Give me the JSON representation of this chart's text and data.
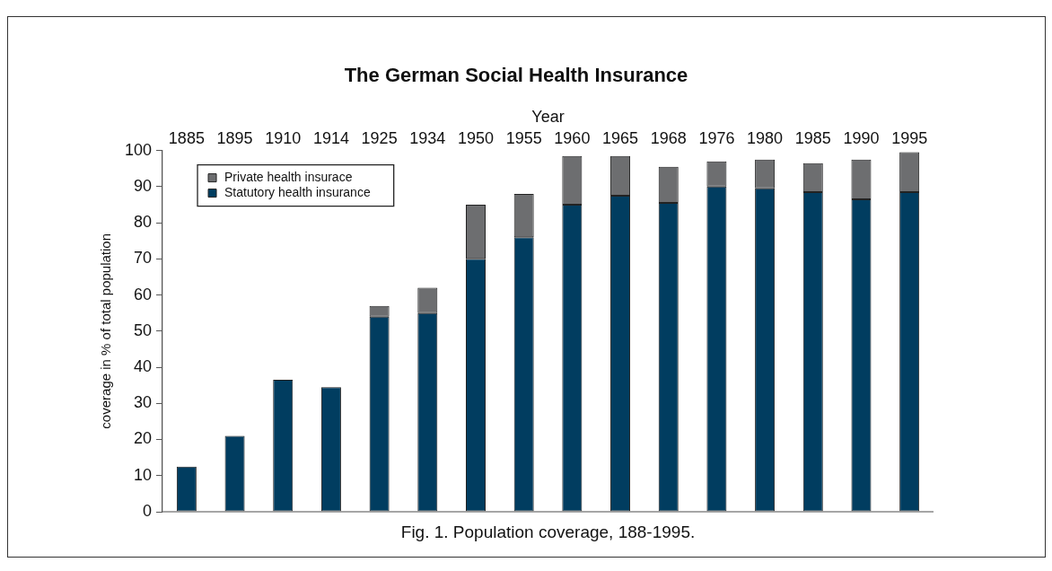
{
  "chart_data": {
    "type": "bar",
    "title": "The German Social Health Insurance",
    "xlabel": "Year",
    "ylabel": "coverage in % of total population",
    "annotations": [
      "Fig. 1. Population coverage, 188-1995."
    ],
    "categories": [
      "1885",
      "1895",
      "1910",
      "1914",
      "1925",
      "1934",
      "1950",
      "1955",
      "1960",
      "1965",
      "1968",
      "1976",
      "1980",
      "1985",
      "1990",
      "1995"
    ],
    "series": [
      {
        "name": "Statutory health insurance",
        "color": "#013d60",
        "values": [
          12.5,
          21,
          36.5,
          34.5,
          54,
          55,
          70,
          76,
          85,
          87.5,
          85.5,
          90,
          89.5,
          88.5,
          86.5,
          88.5
        ]
      },
      {
        "name": "Private health insurace",
        "color": "#6d6e70",
        "values": [
          null,
          null,
          null,
          null,
          3,
          7,
          15,
          12,
          13.5,
          11,
          10,
          7,
          8,
          8,
          11,
          11
        ]
      }
    ],
    "stacked": true,
    "ylim": [
      0,
      100
    ],
    "yticks": [
      0,
      10,
      20,
      30,
      40,
      50,
      60,
      70,
      80,
      90,
      100
    ],
    "legend": "top left"
  }
}
